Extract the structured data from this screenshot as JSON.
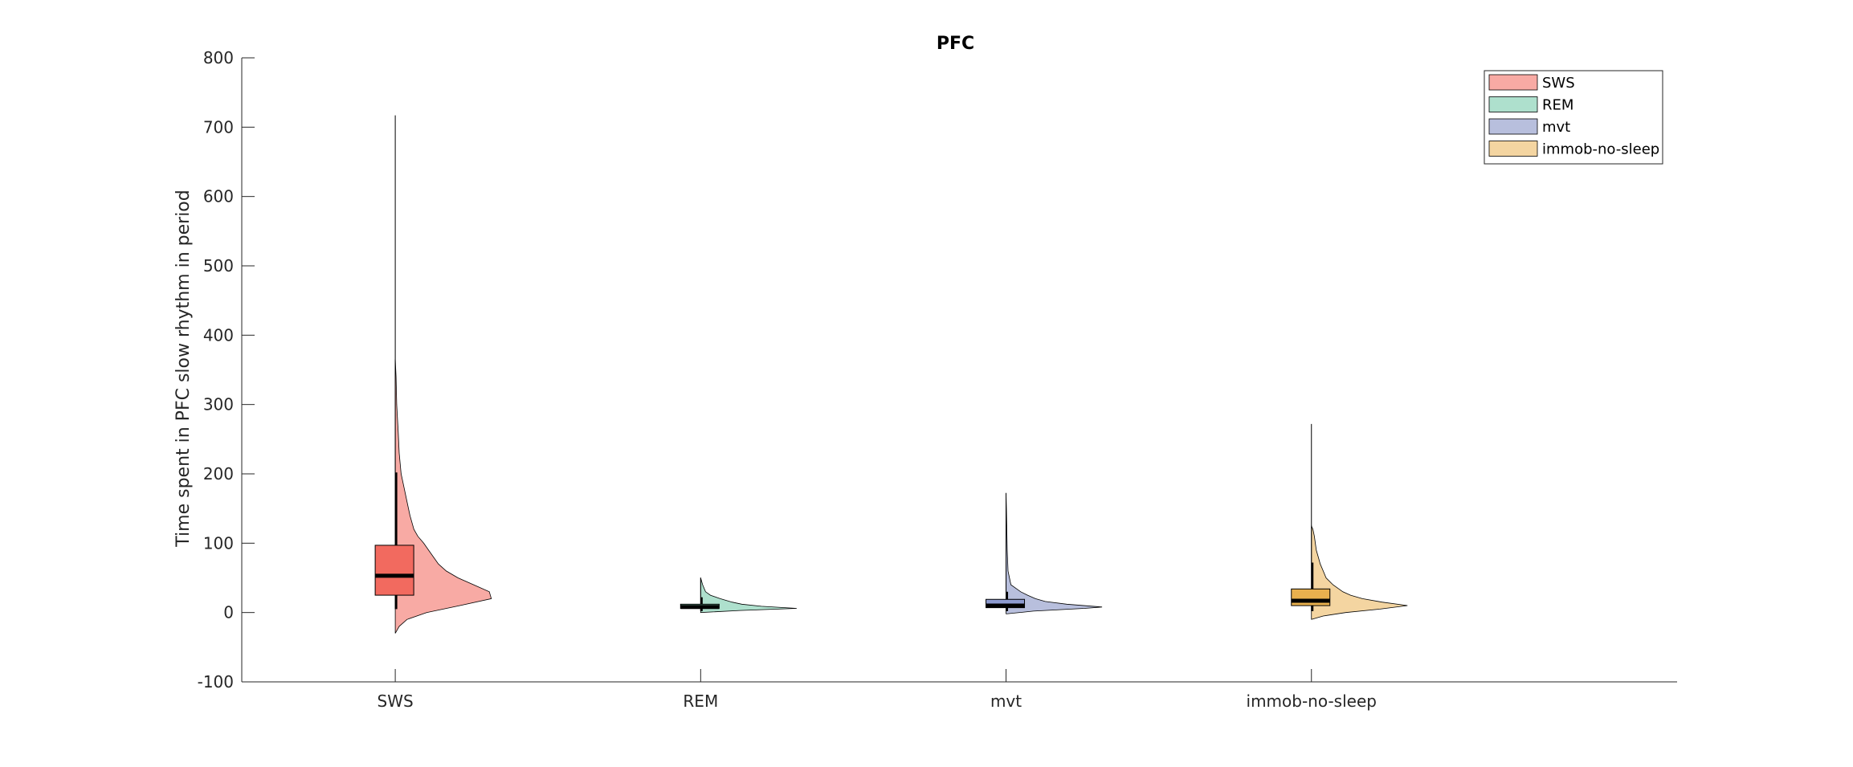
{
  "chart_data": {
    "type": "violin",
    "title": "PFC",
    "ylabel": "Time spent in PFC slow rhythm in period",
    "ylim": [
      -100,
      800
    ],
    "yticks": [
      -100,
      0,
      100,
      200,
      300,
      400,
      500,
      600,
      700,
      800
    ],
    "categories": [
      "SWS",
      "REM",
      "mvt",
      "immob-no-sleep"
    ],
    "legend_position": "top-right",
    "series": [
      {
        "name": "SWS",
        "color": "#f8aaa4",
        "box_color": "#f26a5f",
        "box": {
          "q1": 25,
          "median": 53,
          "q3": 97
        },
        "whisker": [
          5,
          202
        ],
        "outlier_max": 717,
        "violin": {
          "y": [
            -30,
            -20,
            -10,
            0,
            10,
            20,
            30,
            40,
            50,
            60,
            70,
            80,
            90,
            100,
            110,
            120,
            140,
            160,
            180,
            200,
            230,
            260,
            300,
            340,
            365
          ],
          "width": [
            0,
            0.04,
            0.12,
            0.32,
            0.66,
            0.98,
            0.96,
            0.8,
            0.64,
            0.52,
            0.44,
            0.39,
            0.34,
            0.29,
            0.23,
            0.19,
            0.15,
            0.12,
            0.09,
            0.06,
            0.04,
            0.03,
            0.015,
            0.008,
            0
          ]
        }
      },
      {
        "name": "REM",
        "color": "#aee0cd",
        "box_color": "#7fcdb0",
        "box": {
          "q1": 6,
          "median": 8,
          "q3": 12
        },
        "whisker": [
          2,
          22
        ],
        "outlier_max": 50,
        "violin": {
          "y": [
            0,
            3,
            6,
            9,
            12,
            15,
            20,
            25,
            30,
            40,
            50
          ],
          "width": [
            0,
            0.4,
            0.98,
            0.62,
            0.42,
            0.32,
            0.2,
            0.1,
            0.05,
            0.02,
            0
          ]
        }
      },
      {
        "name": "mvt",
        "color": "#b8bfdd",
        "box_color": "#8e9bd0",
        "box": {
          "q1": 7,
          "median": 10,
          "q3": 19
        },
        "whisker": [
          2,
          30
        ],
        "outlier_max": 172,
        "violin": {
          "y": [
            -2,
            2,
            6,
            8,
            12,
            16,
            20,
            25,
            30,
            40,
            60,
            90,
            120,
            150,
            172
          ],
          "width": [
            0,
            0.28,
            0.8,
            0.98,
            0.62,
            0.4,
            0.3,
            0.22,
            0.15,
            0.05,
            0.02,
            0.012,
            0.008,
            0.004,
            0
          ]
        }
      },
      {
        "name": "immob-no-sleep",
        "color": "#f4d5a1",
        "box_color": "#e8b04e",
        "box": {
          "q1": 10,
          "median": 17,
          "q3": 34
        },
        "whisker": [
          2,
          72
        ],
        "outlier_max": 272,
        "violin": {
          "y": [
            -10,
            -5,
            0,
            5,
            10,
            15,
            20,
            25,
            30,
            40,
            50,
            60,
            70,
            80,
            90,
            100,
            110,
            120,
            125
          ],
          "width": [
            0,
            0.12,
            0.35,
            0.7,
            0.98,
            0.72,
            0.52,
            0.4,
            0.32,
            0.22,
            0.15,
            0.12,
            0.09,
            0.07,
            0.05,
            0.04,
            0.03,
            0.015,
            0
          ]
        }
      }
    ]
  }
}
